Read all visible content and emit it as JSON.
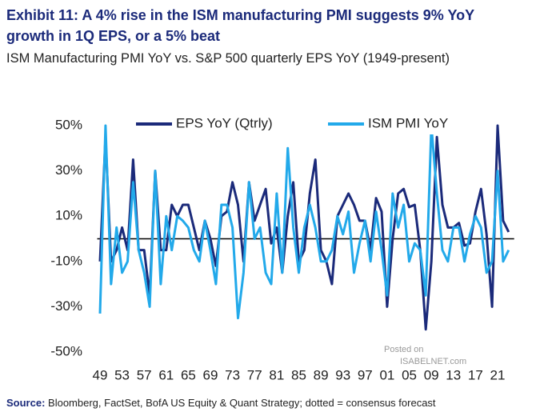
{
  "chart_data": {
    "type": "line",
    "title": "Exhibit 11: A 4% rise in the ISM manufacturing PMI suggests 9% YoY growth in 1Q EPS, or a 5% beat",
    "subtitle": "ISM Manufacturing PMI YoY vs. S&P 500 quarterly EPS YoY (1949-present)",
    "source_label": "Source:",
    "source": "Bloomberg, FactSet, BofA US Equity & Quant Strategy; dotted = consensus forecast",
    "watermark": [
      "Posted on",
      "ISABELNET.com"
    ],
    "x": [
      1949,
      1950,
      1951,
      1952,
      1953,
      1954,
      1955,
      1956,
      1957,
      1958,
      1959,
      1960,
      1961,
      1962,
      1963,
      1964,
      1965,
      1966,
      1967,
      1968,
      1969,
      1970,
      1971,
      1972,
      1973,
      1974,
      1975,
      1976,
      1977,
      1978,
      1979,
      1980,
      1981,
      1982,
      1983,
      1984,
      1985,
      1986,
      1987,
      1988,
      1989,
      1990,
      1991,
      1992,
      1993,
      1994,
      1995,
      1996,
      1997,
      1998,
      1999,
      2000,
      2001,
      2002,
      2003,
      2004,
      2005,
      2006,
      2007,
      2008,
      2009,
      2010,
      2011,
      2012,
      2013,
      2014,
      2015,
      2016,
      2017,
      2018,
      2019,
      2020,
      2021,
      2022,
      2023
    ],
    "series": [
      {
        "name": "EPS YoY (Qtrly)",
        "color": "#1b2a7a",
        "values": [
          -10,
          45,
          -10,
          -5,
          5,
          -5,
          35,
          -5,
          -5,
          -25,
          30,
          -5,
          -5,
          15,
          10,
          15,
          15,
          5,
          -5,
          8,
          0,
          -12,
          10,
          12,
          25,
          15,
          -10,
          25,
          8,
          15,
          22,
          -2,
          5,
          -15,
          10,
          25,
          -10,
          -5,
          20,
          35,
          -5,
          -10,
          -20,
          10,
          15,
          20,
          15,
          8,
          8,
          -5,
          18,
          12,
          -30,
          0,
          20,
          22,
          14,
          15,
          -5,
          -40,
          -10,
          45,
          15,
          5,
          5,
          7,
          -3,
          -2,
          12,
          22,
          2,
          -30,
          50,
          8,
          3
        ]
      },
      {
        "name": "ISM PMI YoY",
        "color": "#22a9ea",
        "values": [
          -33,
          50,
          -20,
          5,
          -15,
          -10,
          25,
          -5,
          -15,
          -30,
          30,
          -20,
          10,
          -5,
          10,
          8,
          5,
          -5,
          -10,
          8,
          -5,
          -20,
          15,
          15,
          5,
          -35,
          -15,
          25,
          0,
          5,
          -15,
          -20,
          20,
          -15,
          40,
          5,
          -15,
          5,
          15,
          5,
          -10,
          -10,
          -5,
          10,
          2,
          12,
          -15,
          -2,
          8,
          -10,
          12,
          -5,
          -25,
          20,
          5,
          15,
          -10,
          -2,
          -5,
          -25,
          50,
          20,
          -5,
          -10,
          5,
          5,
          -10,
          2,
          10,
          5,
          -15,
          -10,
          30,
          -10,
          -5
        ]
      }
    ],
    "xlim": [
      1948.5,
      2024
    ],
    "xticks": [
      {
        "value": 1949,
        "label": "49"
      },
      {
        "value": 1953,
        "label": "53"
      },
      {
        "value": 1957,
        "label": "57"
      },
      {
        "value": 1961,
        "label": "61"
      },
      {
        "value": 1965,
        "label": "65"
      },
      {
        "value": 1969,
        "label": "69"
      },
      {
        "value": 1973,
        "label": "73"
      },
      {
        "value": 1977,
        "label": "77"
      },
      {
        "value": 1981,
        "label": "81"
      },
      {
        "value": 1985,
        "label": "85"
      },
      {
        "value": 1989,
        "label": "89"
      },
      {
        "value": 1993,
        "label": "93"
      },
      {
        "value": 1997,
        "label": "97"
      },
      {
        "value": 2001,
        "label": "01"
      },
      {
        "value": 2005,
        "label": "05"
      },
      {
        "value": 2009,
        "label": "09"
      },
      {
        "value": 2013,
        "label": "13"
      },
      {
        "value": 2017,
        "label": "17"
      },
      {
        "value": 2021,
        "label": "21"
      }
    ],
    "ylim": [
      -50,
      50
    ],
    "yticks": [
      {
        "value": 50,
        "label": "50%"
      },
      {
        "value": 30,
        "label": "30%"
      },
      {
        "value": 10,
        "label": "10%"
      },
      {
        "value": -10,
        "label": "-10%"
      },
      {
        "value": -30,
        "label": "-30%"
      },
      {
        "value": -50,
        "label": "-50%"
      }
    ],
    "reference_line": 0,
    "grid": false
  }
}
